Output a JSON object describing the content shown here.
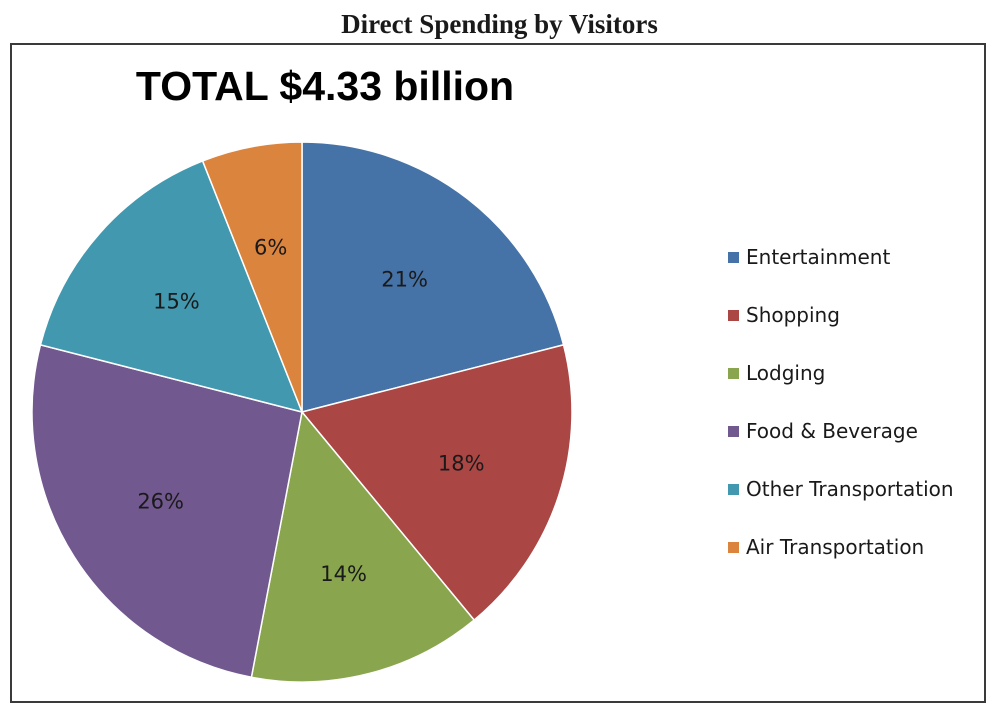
{
  "figure_heading": "Direct Spending by Visitors",
  "chart_data": {
    "type": "pie",
    "title": "TOTAL $4.33 billion",
    "start_angle_deg": 0,
    "direction": "clockwise",
    "legend_position": "right",
    "slices": [
      {
        "name": "Entertainment",
        "value": 21,
        "label": "21%",
        "color": "#4572A7"
      },
      {
        "name": "Shopping",
        "value": 18,
        "label": "18%",
        "color": "#AA4643"
      },
      {
        "name": "Lodging",
        "value": 14,
        "label": "14%",
        "color": "#89A54E"
      },
      {
        "name": "Food & Beverage",
        "value": 26,
        "label": "26%",
        "color": "#71588F"
      },
      {
        "name": "Other Transportation",
        "value": 15,
        "label": "15%",
        "color": "#4198AF"
      },
      {
        "name": "Air Transportation",
        "value": 6,
        "label": "6%",
        "color": "#DB843D"
      }
    ]
  }
}
